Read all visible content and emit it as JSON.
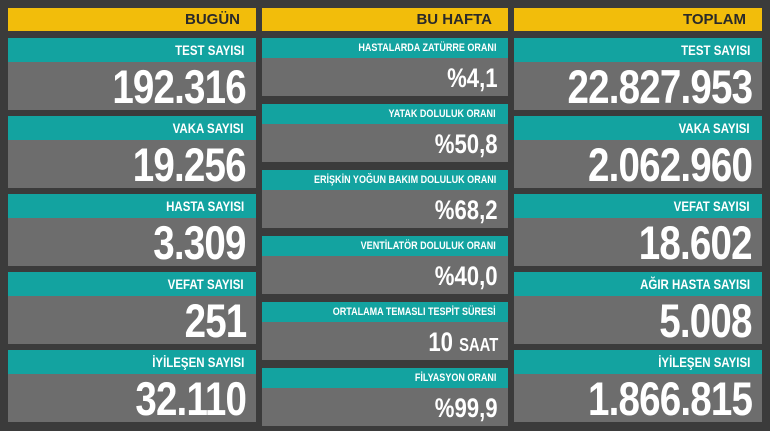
{
  "columns": [
    {
      "title": "BUGÜN",
      "items": [
        {
          "label": "TEST SAYISI",
          "value": "192.316"
        },
        {
          "label": "VAKA SAYISI",
          "value": "19.256"
        },
        {
          "label": "HASTA SAYISI",
          "value": "3.309"
        },
        {
          "label": "VEFAT SAYISI",
          "value": "251"
        },
        {
          "label": "İYİLEŞEN SAYISI",
          "value": "32.110"
        }
      ]
    },
    {
      "title": "BU HAFTA",
      "items": [
        {
          "label": "HASTALARDA ZATÜRRE ORANI",
          "value": "%4,1"
        },
        {
          "label": "YATAK DOLULUK ORANI",
          "value": "%50,8"
        },
        {
          "label": "ERİŞKİN YOĞUN BAKIM DOLULUK ORANI",
          "value": "%68,2"
        },
        {
          "label": "VENTİLATÖR DOLULUK ORANI",
          "value": "%40,0"
        },
        {
          "label": "ORTALAMA TEMASLI TESPİT SÜRESİ",
          "value": "10",
          "unit": "SAAT"
        },
        {
          "label": "FİLYASYON ORANI",
          "value": "%99,9"
        }
      ]
    },
    {
      "title": "TOPLAM",
      "items": [
        {
          "label": "TEST SAYISI",
          "value": "22.827.953"
        },
        {
          "label": "VAKA SAYISI",
          "value": "2.062.960"
        },
        {
          "label": "VEFAT SAYISI",
          "value": "18.602"
        },
        {
          "label": "AĞIR HASTA SAYISI",
          "value": "5.008"
        },
        {
          "label": "İYİLEŞEN SAYISI",
          "value": "1.866.815"
        }
      ]
    }
  ],
  "colors": {
    "header": "#f2bd0b",
    "label": "#13a3a0",
    "value_bg": "#6d6d6d",
    "background": "#3b3b3b"
  }
}
